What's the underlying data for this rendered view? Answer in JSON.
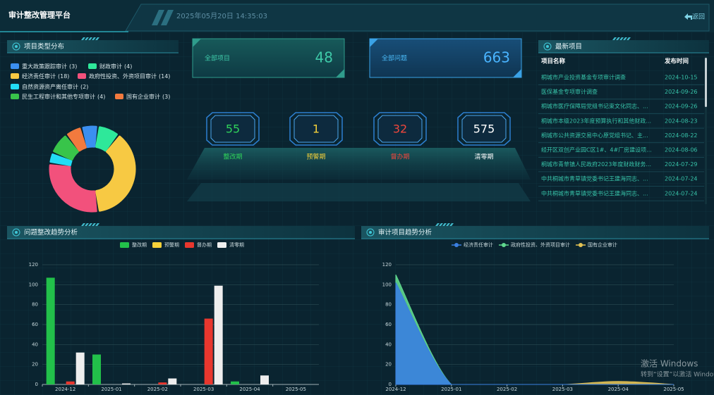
{
  "header": {
    "title": "审计整改管理平台",
    "datetime": "2025年05月20日 14:35:03",
    "back": "返回"
  },
  "summary": {
    "projects": {
      "label": "全部项目",
      "value": 48
    },
    "issues": {
      "label": "全部问题",
      "value": 663
    }
  },
  "periods": [
    {
      "label": "整改期",
      "value": 55,
      "color": "#2fd15a"
    },
    {
      "label": "预警期",
      "value": 1,
      "color": "#f5d13a"
    },
    {
      "label": "督办期",
      "value": 32,
      "color": "#f0473c"
    },
    {
      "label": "清零期",
      "value": 575,
      "color": "#ffffff"
    }
  ],
  "latest": {
    "title": "最新项目",
    "columns": [
      "项目名称",
      "发布时间"
    ],
    "rows": [
      [
        "桐城市产业投资基金专项审计调查",
        "2024-10-15"
      ],
      [
        "医保基金专项审计调查",
        "2024-09-26"
      ],
      [
        "桐城市医疗保障局党组书记束文化同志、...",
        "2024-09-26"
      ],
      [
        "桐城市本级2023年度预算执行和其他财政...",
        "2024-08-23"
      ],
      [
        "桐城市公共资源交易中心原党组书记、主...",
        "2024-08-22"
      ],
      [
        "经开区双创产业园C区1#、4#厂房建设项...",
        "2024-08-06"
      ],
      [
        "桐城市青草镇人民政府2023年度财政财务...",
        "2024-07-29"
      ],
      [
        "中共桐城市青草镇党委书记王建海同志、...",
        "2024-07-24"
      ],
      [
        "中共桐城市青草镇党委书记王建海同志、...",
        "2024-07-24"
      ]
    ]
  },
  "chart_data": [
    {
      "type": "pie",
      "title": "项目类型分布",
      "categories": [
        "重大政策跟踪审计",
        "财政审计",
        "经济责任审计",
        "政府性投资、外资项目审计",
        "自然资源资产离任审计",
        "民生工程审计和其他专项审计",
        "国有企业审计"
      ],
      "values": [
        3,
        4,
        18,
        14,
        2,
        4,
        3
      ],
      "value_labels": [
        "(3)",
        "(4)",
        "(18)",
        "(14)",
        "(2)",
        "(4)",
        "(3)"
      ],
      "colors": [
        "#3b8ff0",
        "#2ee89a",
        "#f7c943",
        "#f2517c",
        "#22dcf5",
        "#38c44a",
        "#f27a3e"
      ]
    },
    {
      "type": "bar",
      "title": "问题整改趋势分析",
      "categories": [
        "2024-12",
        "2025-01",
        "2025-02",
        "2025-03",
        "2025-04",
        "2025-05"
      ],
      "series": [
        {
          "name": "整改期",
          "color": "#22c04a",
          "values": [
            107,
            30,
            0,
            0,
            3,
            0
          ]
        },
        {
          "name": "预警期",
          "color": "#f5d13a",
          "values": [
            0,
            0,
            0,
            0,
            0,
            0
          ]
        },
        {
          "name": "督办期",
          "color": "#e8372e",
          "values": [
            3,
            0,
            2,
            66,
            0,
            0
          ]
        },
        {
          "name": "清零期",
          "color": "#eeeeee",
          "values": [
            32,
            1,
            6,
            99,
            9,
            0
          ]
        }
      ],
      "ylim": [
        0,
        120
      ],
      "yticks": [
        0,
        20,
        40,
        60,
        80,
        100,
        120
      ],
      "grid": true
    },
    {
      "type": "area",
      "title": "审计项目趋势分析",
      "categories": [
        "2024-12",
        "2025-01",
        "2025-02",
        "2025-03",
        "2025-04",
        "2025-05"
      ],
      "series": [
        {
          "name": "经济责任审计",
          "color": "#3a7fe0",
          "values": [
            102,
            0,
            0,
            0,
            0,
            0
          ]
        },
        {
          "name": "政府性投资、外资项目审计",
          "color": "#5fd88e",
          "values": [
            110,
            0,
            0,
            0,
            0,
            0
          ]
        },
        {
          "name": "国有企业审计",
          "color": "#e2c254",
          "values": [
            0,
            0,
            0,
            0,
            3,
            0
          ]
        }
      ],
      "ylim": [
        0,
        120
      ],
      "yticks": [
        0,
        20,
        40,
        60,
        80,
        100,
        120
      ],
      "grid": true
    }
  ],
  "watermark": {
    "line1": "激活 Windows",
    "line2": "转到“设置”以激活 Windows"
  }
}
